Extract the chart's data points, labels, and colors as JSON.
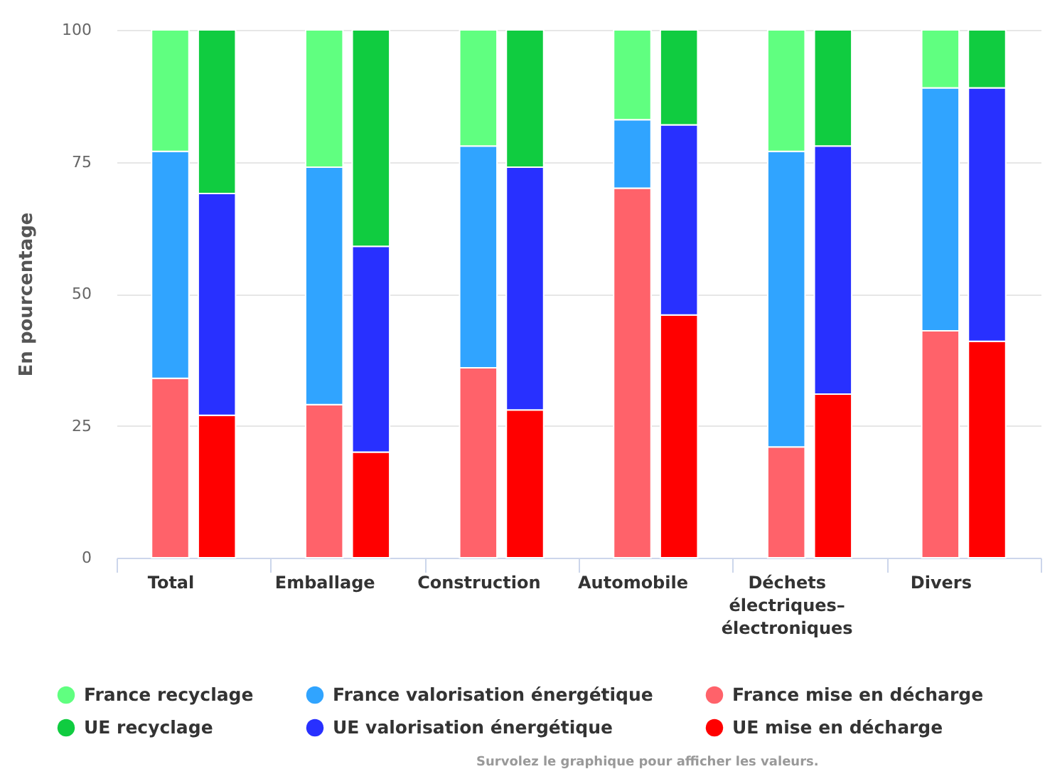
{
  "chart_data": {
    "type": "bar",
    "ylabel": "En pourcentage",
    "categories": [
      "Total",
      null,
      "Emballage",
      null,
      "Construction",
      null,
      "Automobile",
      null,
      "Déchets électriques–électroniques",
      null,
      "Divers",
      null
    ],
    "stacked": true,
    "series": [
      {
        "name": "France mise en décharge",
        "color": "#ff626a",
        "values": [
          34,
          null,
          29,
          null,
          36,
          null,
          70,
          null,
          21,
          null,
          43,
          null
        ]
      },
      {
        "name": "UE mise en décharge",
        "color": "#ff0000",
        "values": [
          null,
          27,
          null,
          20,
          null,
          28,
          null,
          46,
          null,
          31,
          null,
          41
        ]
      },
      {
        "name": "France valorisation énergétique",
        "color": "#30a4ff",
        "values": [
          43,
          null,
          45,
          null,
          42,
          null,
          13,
          null,
          56,
          null,
          46,
          null
        ]
      },
      {
        "name": "UE valorisation énergétique",
        "color": "#2830ff",
        "values": [
          null,
          42,
          null,
          39,
          null,
          46,
          null,
          36,
          null,
          47,
          null,
          48
        ]
      },
      {
        "name": "France recyclage",
        "color": "#60ff80",
        "values": [
          23,
          null,
          26,
          null,
          22,
          null,
          17,
          null,
          23,
          null,
          11,
          null
        ]
      },
      {
        "name": "UE recyclage",
        "color": "#10cc40",
        "values": [
          null,
          31,
          null,
          41,
          null,
          26,
          null,
          18,
          null,
          22,
          null,
          11
        ]
      }
    ],
    "ylim": [
      0,
      100
    ],
    "yticks": [
      0,
      25,
      50,
      75,
      100
    ],
    "grid": "y",
    "legend": "bottom",
    "annotations": [
      "Survolez le graphique pour afficher les valeurs."
    ]
  }
}
